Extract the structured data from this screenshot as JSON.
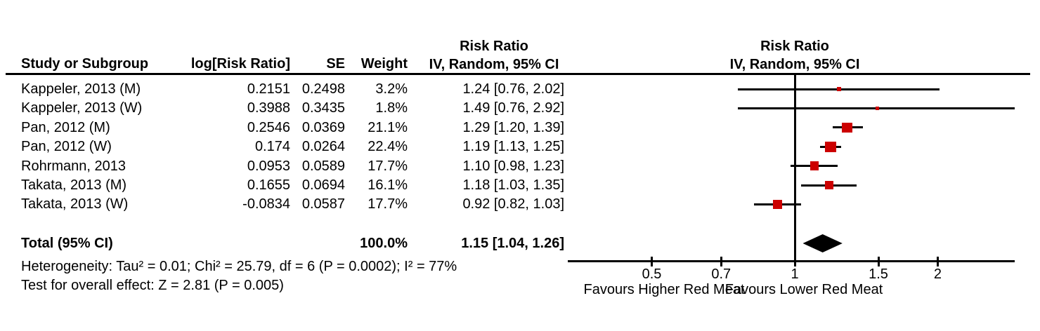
{
  "columns": {
    "study": "Study or Subgroup",
    "log_rr": "log[Risk Ratio]",
    "se": "SE",
    "weight": "Weight",
    "effect_title": "Risk Ratio",
    "effect_method": "IV, Random, 95% CI",
    "plot_title": "Risk Ratio",
    "plot_method": "IV, Random, 95% CI"
  },
  "chart_data": {
    "type": "forest",
    "effect_measure": "Risk Ratio",
    "method": "IV, Random, 95% CI",
    "x_scale": "log",
    "x_ticks": [
      "0.5",
      "0.7",
      "1",
      "1.5",
      "2"
    ],
    "favours_left": "Favours Higher Red Meat",
    "favours_right": "Favours Lower Red Meat",
    "studies": [
      {
        "label": "Kappeler, 2013 (M)",
        "log_rr": "0.2151",
        "se": "0.2498",
        "weight": "3.2%",
        "weight_pct": 3.2,
        "rr": 1.24,
        "ci_low": 0.76,
        "ci_high": 2.02,
        "estimate_text": "1.24 [0.76, 2.02]"
      },
      {
        "label": "Kappeler, 2013 (W)",
        "log_rr": "0.3988",
        "se": "0.3435",
        "weight": "1.8%",
        "weight_pct": 1.8,
        "rr": 1.49,
        "ci_low": 0.76,
        "ci_high": 2.92,
        "estimate_text": "1.49 [0.76, 2.92]"
      },
      {
        "label": "Pan, 2012 (M)",
        "log_rr": "0.2546",
        "se": "0.0369",
        "weight": "21.1%",
        "weight_pct": 21.1,
        "rr": 1.29,
        "ci_low": 1.2,
        "ci_high": 1.39,
        "estimate_text": "1.29 [1.20, 1.39]"
      },
      {
        "label": "Pan, 2012 (W)",
        "log_rr": "0.174",
        "se": "0.0264",
        "weight": "22.4%",
        "weight_pct": 22.4,
        "rr": 1.19,
        "ci_low": 1.13,
        "ci_high": 1.25,
        "estimate_text": "1.19 [1.13, 1.25]"
      },
      {
        "label": "Rohrmann, 2013",
        "log_rr": "0.0953",
        "se": "0.0589",
        "weight": "17.7%",
        "weight_pct": 17.7,
        "rr": 1.1,
        "ci_low": 0.98,
        "ci_high": 1.23,
        "estimate_text": "1.10 [0.98, 1.23]"
      },
      {
        "label": "Takata, 2013 (M)",
        "log_rr": "0.1655",
        "se": "0.0694",
        "weight": "16.1%",
        "weight_pct": 16.1,
        "rr": 1.18,
        "ci_low": 1.03,
        "ci_high": 1.35,
        "estimate_text": "1.18 [1.03, 1.35]"
      },
      {
        "label": "Takata, 2013 (W)",
        "log_rr": "-0.0834",
        "se": "0.0587",
        "weight": "17.7%",
        "weight_pct": 17.7,
        "rr": 0.92,
        "ci_low": 0.82,
        "ci_high": 1.03,
        "estimate_text": "0.92 [0.82, 1.03]"
      }
    ],
    "total": {
      "label": "Total (95% CI)",
      "weight": "100.0%",
      "rr": 1.15,
      "ci_low": 1.04,
      "ci_high": 1.26,
      "estimate_text": "1.15 [1.04, 1.26]"
    },
    "heterogeneity": "Heterogeneity: Tau² = 0.01; Chi² = 25.79, df = 6 (P = 0.0002); I² = 77%",
    "overall_effect": "Test for overall effect: Z = 2.81 (P = 0.005)"
  },
  "colors": {
    "marker": "#cc0000",
    "line": "#000000",
    "diamond": "#000000",
    "text": "#000000"
  }
}
